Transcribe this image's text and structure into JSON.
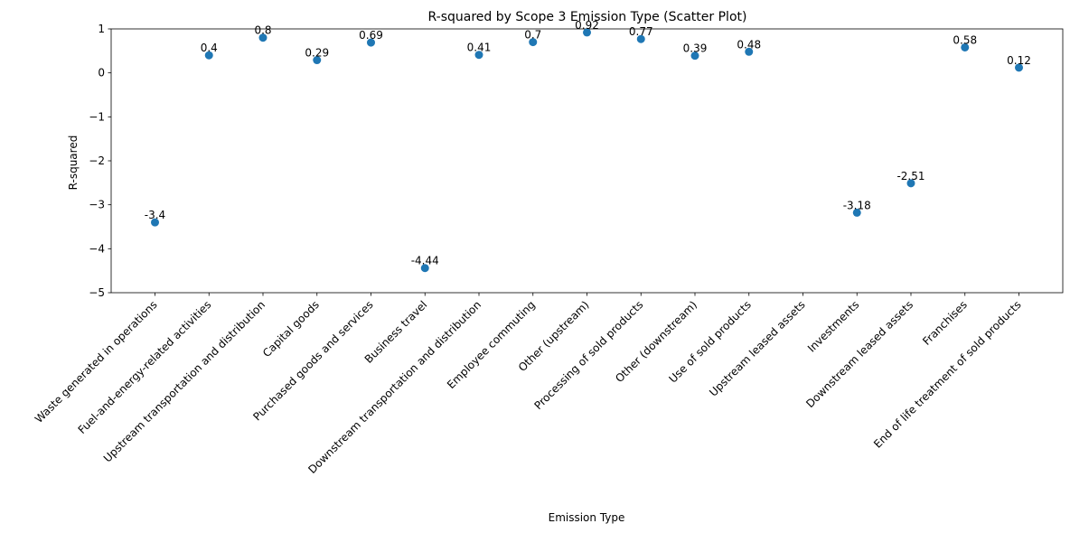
{
  "chart_data": {
    "type": "scatter",
    "title": "R-squared by Scope 3 Emission Type (Scatter Plot)",
    "xlabel": "Emission Type",
    "ylabel": "R-squared",
    "ylim": [
      -5,
      1
    ],
    "yticks": [
      1,
      0,
      -1,
      -2,
      -3,
      -4,
      -5
    ],
    "ytick_labels": [
      "1",
      "0",
      "−1",
      "−2",
      "−3",
      "−4",
      "−5"
    ],
    "grid": false,
    "color": "#1f77b4",
    "categories": [
      "Waste generated in operations",
      "Fuel-and-energy-related activities",
      "Upstream transportation and distribution",
      "Capital goods",
      "Purchased goods and services",
      "Business travel",
      "Downstream transportation and distribution",
      "Employee commuting",
      "Other (upstream)",
      "Processing of sold products",
      "Other (downstream)",
      "Use of sold products",
      "Upstream leased assets",
      "Investments",
      "Downstream leased assets",
      "Franchises",
      "End of life treatment of sold products"
    ],
    "values": [
      -3.4,
      0.4,
      0.8,
      0.29,
      0.69,
      -4.44,
      0.41,
      0.7,
      0.92,
      0.77,
      0.39,
      0.48,
      null,
      -3.18,
      -2.51,
      0.58,
      0.12
    ],
    "point_labels": [
      "-3.4",
      "0.4",
      "0.8",
      "0.29",
      "0.69",
      "-4.44",
      "0.41",
      "0.7",
      "0.92",
      "0.77",
      "0.39",
      "0.48",
      "",
      "-3.18",
      "-2.51",
      "0.58",
      "0.12"
    ]
  }
}
